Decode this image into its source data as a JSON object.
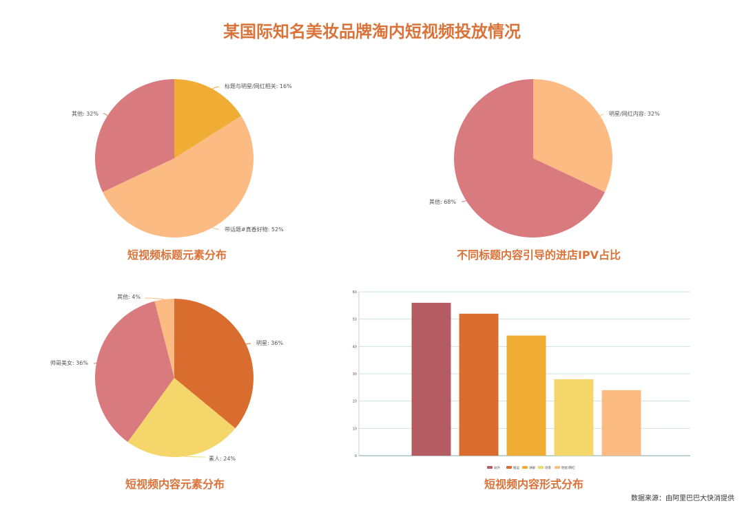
{
  "title": "某国际知名美妆品牌淘内短视频投放情况",
  "source_note": "数据来源：由阿里巴巴大快消提供",
  "chart_data": [
    {
      "type": "pie",
      "title": "短视频标题元素分布",
      "slices": [
        {
          "label": "标题与明星/网红相关: 16%",
          "value": 16,
          "color": "#efad35"
        },
        {
          "label": "带话题#真香好物: 52%",
          "value": 52,
          "color": "#fdbb84"
        },
        {
          "label": "其他: 32%",
          "value": 32,
          "color": "#d87a7e"
        }
      ]
    },
    {
      "type": "pie",
      "title": "不同标题内容引导的进店IPV占比",
      "slices": [
        {
          "label": "明星/网红内容: 32%",
          "value": 32,
          "color": "#fdbb84"
        },
        {
          "label": "其他: 68%",
          "value": 68,
          "color": "#d87a7e"
        }
      ]
    },
    {
      "type": "pie",
      "title": "短视频内容元素分布",
      "slices": [
        {
          "label": "明星: 36%",
          "value": 36,
          "color": "#d96d2f"
        },
        {
          "label": "素人: 24%",
          "value": 24,
          "color": "#f4d66b"
        },
        {
          "label": "帅哥美女: 36%",
          "value": 36,
          "color": "#d87a7e"
        },
        {
          "label": "其他: 4%",
          "value": 4,
          "color": "#fdbb84"
        }
      ]
    },
    {
      "type": "bar",
      "title": "短视频内容形式分布",
      "categories": [
        "站外",
        "搬运",
        "讲解",
        "场景",
        "明星/网红"
      ],
      "values": [
        56,
        52,
        44,
        28,
        24
      ],
      "colors": [
        "#b55b62",
        "#d96d2f",
        "#efad35",
        "#f4d66b",
        "#fdbb84"
      ],
      "ylim": [
        0,
        60
      ],
      "yticks": [
        "0",
        "10",
        "20",
        "30",
        "40",
        "50",
        "60"
      ]
    }
  ]
}
